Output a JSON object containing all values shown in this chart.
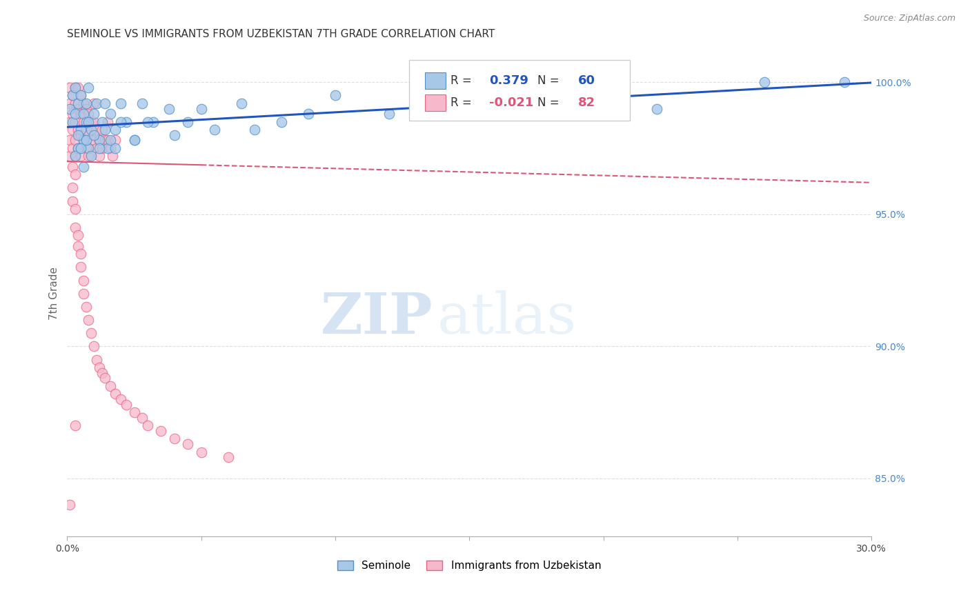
{
  "title": "SEMINOLE VS IMMIGRANTS FROM UZBEKISTAN 7TH GRADE CORRELATION CHART",
  "source": "Source: ZipAtlas.com",
  "ylabel": "7th Grade",
  "xlim": [
    0.0,
    0.3
  ],
  "ylim": [
    0.828,
    1.012
  ],
  "xticks": [
    0.0,
    0.05,
    0.1,
    0.15,
    0.2,
    0.25,
    0.3
  ],
  "xticklabels": [
    "0.0%",
    "",
    "",
    "",
    "",
    "",
    "30.0%"
  ],
  "yticks_right": [
    0.85,
    0.9,
    0.95,
    1.0
  ],
  "ytick_right_labels": [
    "85.0%",
    "90.0%",
    "95.0%",
    "100.0%"
  ],
  "series1_name": "Seminole",
  "series1_color": "#a8c8e8",
  "series1_edge_color": "#5090c8",
  "series1_R": 0.379,
  "series1_N": 60,
  "series2_name": "Immigrants from Uzbekistan",
  "series2_color": "#f8b8cc",
  "series2_edge_color": "#e86080",
  "series2_R": -0.021,
  "series2_N": 82,
  "trend1_color": "#2255bb",
  "trend2_color": "#dd5577",
  "background_color": "#ffffff",
  "grid_color": "#dddddd",
  "watermark_zip": "ZIP",
  "watermark_atlas": "atlas",
  "title_fontsize": 11,
  "axis_label_color": "#666666",
  "right_axis_color": "#4488cc",
  "seminole_x": [
    0.001,
    0.002,
    0.002,
    0.003,
    0.003,
    0.004,
    0.004,
    0.005,
    0.005,
    0.006,
    0.006,
    0.007,
    0.007,
    0.008,
    0.008,
    0.009,
    0.01,
    0.011,
    0.012,
    0.013,
    0.014,
    0.015,
    0.016,
    0.018,
    0.02,
    0.022,
    0.025,
    0.028,
    0.032,
    0.038,
    0.045,
    0.055,
    0.065,
    0.08,
    0.1,
    0.12,
    0.15,
    0.18,
    0.22,
    0.26,
    0.003,
    0.004,
    0.005,
    0.006,
    0.007,
    0.008,
    0.009,
    0.01,
    0.012,
    0.014,
    0.016,
    0.018,
    0.02,
    0.025,
    0.03,
    0.04,
    0.05,
    0.07,
    0.09,
    0.29
  ],
  "seminole_y": [
    0.99,
    0.985,
    0.995,
    0.988,
    0.998,
    0.992,
    0.975,
    0.982,
    0.995,
    0.988,
    0.978,
    0.992,
    0.985,
    0.975,
    0.998,
    0.982,
    0.988,
    0.992,
    0.978,
    0.985,
    0.992,
    0.975,
    0.988,
    0.982,
    0.992,
    0.985,
    0.978,
    0.992,
    0.985,
    0.99,
    0.985,
    0.982,
    0.992,
    0.985,
    0.995,
    0.988,
    0.992,
    0.995,
    0.99,
    1.0,
    0.972,
    0.98,
    0.975,
    0.968,
    0.978,
    0.985,
    0.972,
    0.98,
    0.975,
    0.982,
    0.978,
    0.975,
    0.985,
    0.978,
    0.985,
    0.98,
    0.99,
    0.982,
    0.988,
    1.0
  ],
  "uzbek_x": [
    0.001,
    0.001,
    0.001,
    0.001,
    0.001,
    0.002,
    0.002,
    0.002,
    0.002,
    0.002,
    0.003,
    0.003,
    0.003,
    0.003,
    0.003,
    0.003,
    0.004,
    0.004,
    0.004,
    0.004,
    0.005,
    0.005,
    0.005,
    0.005,
    0.006,
    0.006,
    0.006,
    0.007,
    0.007,
    0.007,
    0.008,
    0.008,
    0.008,
    0.009,
    0.009,
    0.01,
    0.01,
    0.01,
    0.011,
    0.011,
    0.012,
    0.012,
    0.013,
    0.013,
    0.014,
    0.015,
    0.015,
    0.016,
    0.017,
    0.018,
    0.002,
    0.002,
    0.003,
    0.003,
    0.004,
    0.004,
    0.005,
    0.005,
    0.006,
    0.006,
    0.007,
    0.008,
    0.009,
    0.01,
    0.011,
    0.012,
    0.013,
    0.014,
    0.016,
    0.018,
    0.02,
    0.022,
    0.025,
    0.028,
    0.03,
    0.035,
    0.04,
    0.045,
    0.05,
    0.06,
    0.001,
    0.003
  ],
  "uzbek_y": [
    0.998,
    0.992,
    0.985,
    0.978,
    0.972,
    0.995,
    0.988,
    0.982,
    0.975,
    0.968,
    0.998,
    0.992,
    0.985,
    0.978,
    0.972,
    0.965,
    0.998,
    0.99,
    0.982,
    0.975,
    0.995,
    0.988,
    0.98,
    0.972,
    0.992,
    0.985,
    0.978,
    0.99,
    0.982,
    0.975,
    0.988,
    0.98,
    0.972,
    0.985,
    0.978,
    0.992,
    0.985,
    0.978,
    0.982,
    0.975,
    0.978,
    0.972,
    0.982,
    0.975,
    0.978,
    0.985,
    0.978,
    0.975,
    0.972,
    0.978,
    0.96,
    0.955,
    0.952,
    0.945,
    0.942,
    0.938,
    0.935,
    0.93,
    0.925,
    0.92,
    0.915,
    0.91,
    0.905,
    0.9,
    0.895,
    0.892,
    0.89,
    0.888,
    0.885,
    0.882,
    0.88,
    0.878,
    0.875,
    0.873,
    0.87,
    0.868,
    0.865,
    0.863,
    0.86,
    0.858,
    0.84,
    0.87
  ]
}
